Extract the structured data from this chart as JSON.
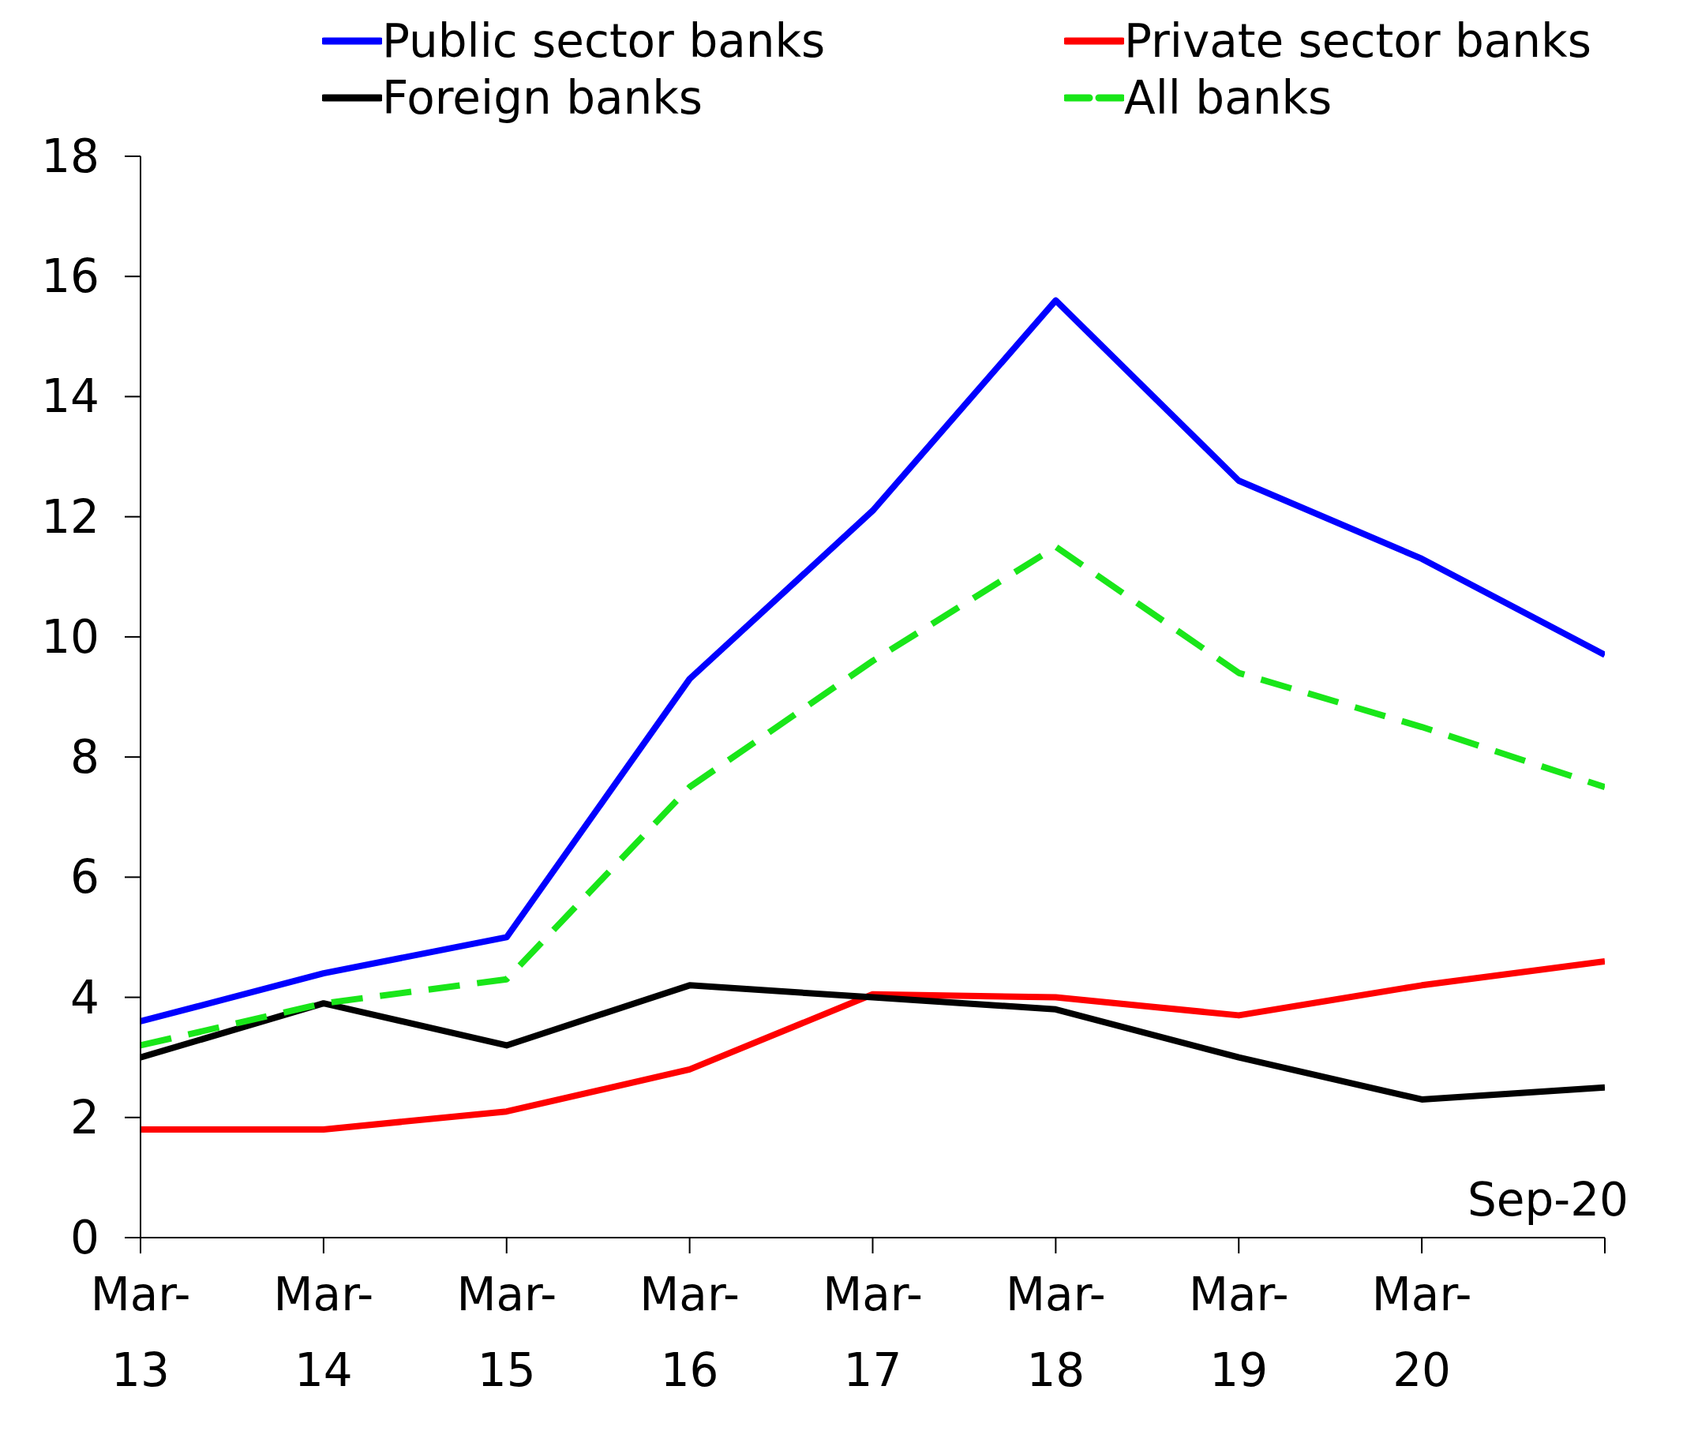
{
  "chart_data": {
    "type": "line",
    "categories": [
      "Mar-13",
      "Mar-14",
      "Mar-15",
      "Mar-16",
      "Mar-17",
      "Mar-18",
      "Mar-19",
      "Mar-20",
      "Sep-20"
    ],
    "series": [
      {
        "name": "Public sector banks",
        "color": "#0000ff",
        "values": [
          3.6,
          4.4,
          5.0,
          9.3,
          12.1,
          15.6,
          12.6,
          11.3,
          9.7
        ]
      },
      {
        "name": "Private sector banks",
        "color": "#ff0000",
        "values": [
          1.8,
          1.8,
          2.1,
          2.8,
          4.05,
          4.0,
          3.7,
          4.2,
          4.6
        ]
      },
      {
        "name": "Foreign banks",
        "color": "#000000",
        "values": [
          3.0,
          3.9,
          3.2,
          4.2,
          4.0,
          3.8,
          3.0,
          2.3,
          2.5
        ]
      },
      {
        "name": "All banks",
        "color": "#19e619",
        "values": [
          3.2,
          3.9,
          4.3,
          7.5,
          9.6,
          11.5,
          9.4,
          8.5,
          7.5
        ],
        "line_style": "dashed"
      }
    ],
    "ylim": [
      0,
      18
    ],
    "yticks": [
      0,
      2,
      4,
      6,
      8,
      10,
      12,
      14,
      16,
      18
    ],
    "grid": false,
    "legend": "top",
    "marker": "none"
  }
}
